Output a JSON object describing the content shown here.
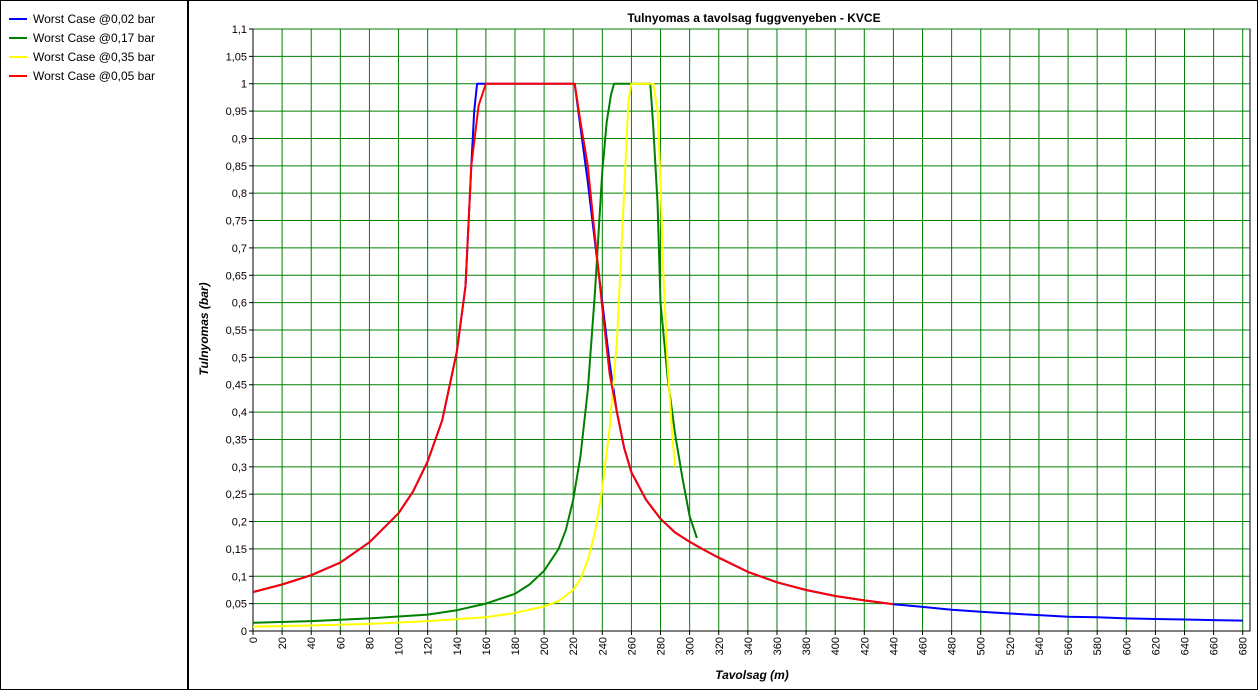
{
  "legend": {
    "items": [
      {
        "label": "Worst Case @0,02 bar",
        "color": "#0000ff"
      },
      {
        "label": "Worst Case @0,17 bar",
        "color": "#008000"
      },
      {
        "label": "Worst Case @0,35 bar",
        "color": "#ffff00"
      },
      {
        "label": "Worst Case @0,05 bar",
        "color": "#ff0000"
      }
    ]
  },
  "chart_data": {
    "type": "line",
    "title": "Tulnyomas a tavolsag fuggvenyeben - KVCE",
    "xlabel": "Tavolsag (m)",
    "ylabel": "Tulnyomas (bar)",
    "xlim": [
      0,
      685
    ],
    "ylim": [
      0,
      1.1
    ],
    "grid": true,
    "grid_color": "#008000",
    "legend_position": "left-panel",
    "x_ticks": [
      "0",
      "20",
      "40",
      "60",
      "80",
      "100",
      "120",
      "140",
      "160",
      "180",
      "200",
      "220",
      "240",
      "260",
      "280",
      "300",
      "320",
      "340",
      "360",
      "380",
      "400",
      "420",
      "440",
      "460",
      "480",
      "500",
      "520",
      "540",
      "560",
      "580",
      "600",
      "620",
      "640",
      "660",
      "680"
    ],
    "y_ticks": [
      "0",
      "0,05",
      "0,1",
      "0,15",
      "0,2",
      "0,25",
      "0,3",
      "0,35",
      "0,4",
      "0,45",
      "0,5",
      "0,55",
      "0,6",
      "0,65",
      "0,7",
      "0,75",
      "0,8",
      "0,85",
      "0,9",
      "0,95",
      "1",
      "1,05",
      "1,1"
    ],
    "series": [
      {
        "name": "Worst Case @0,02 bar",
        "color": "#0000ff",
        "x": [
          0,
          20,
          40,
          60,
          80,
          100,
          110,
          120,
          130,
          140,
          146,
          150,
          152,
          154,
          155,
          160,
          170,
          180,
          200,
          221,
          225,
          230,
          235,
          240,
          245,
          250,
          255,
          260,
          265,
          270,
          280,
          290,
          300,
          310,
          320,
          340,
          360,
          380,
          400,
          420,
          440,
          460,
          480,
          500,
          520,
          540,
          560,
          580,
          600,
          620,
          640,
          660,
          680
        ],
        "y": [
          0.071,
          0.085,
          0.102,
          0.125,
          0.162,
          0.215,
          0.255,
          0.31,
          0.385,
          0.51,
          0.63,
          0.85,
          0.95,
          1.0,
          1.0,
          1.0,
          1.0,
          1.0,
          1.0,
          1.0,
          0.92,
          0.82,
          0.71,
          0.6,
          0.49,
          0.4,
          0.335,
          0.29,
          0.265,
          0.24,
          0.205,
          0.18,
          0.163,
          0.148,
          0.134,
          0.108,
          0.089,
          0.075,
          0.064,
          0.056,
          0.049,
          0.044,
          0.039,
          0.035,
          0.032,
          0.029,
          0.026,
          0.025,
          0.023,
          0.022,
          0.021,
          0.02,
          0.019
        ]
      },
      {
        "name": "Worst Case @0,17 bar",
        "color": "#008000",
        "x": [
          0,
          40,
          80,
          120,
          140,
          160,
          180,
          190,
          200,
          210,
          215,
          220,
          225,
          230,
          235,
          240,
          243,
          246,
          248,
          250,
          255,
          260,
          265,
          270,
          273,
          275,
          278,
          280,
          285,
          290,
          295,
          300,
          305
        ],
        "y": [
          0.015,
          0.018,
          0.023,
          0.03,
          0.038,
          0.05,
          0.068,
          0.085,
          0.11,
          0.15,
          0.185,
          0.24,
          0.32,
          0.44,
          0.62,
          0.84,
          0.93,
          0.98,
          1.0,
          1.0,
          1.0,
          1.0,
          1.0,
          1.0,
          1.0,
          0.92,
          0.78,
          0.6,
          0.46,
          0.36,
          0.28,
          0.21,
          0.17
        ]
      },
      {
        "name": "Worst Case @0,35 bar",
        "color": "#ffff00",
        "x": [
          0,
          40,
          80,
          120,
          160,
          180,
          200,
          210,
          220,
          225,
          230,
          235,
          240,
          245,
          250,
          255,
          258,
          260,
          262,
          270,
          275,
          278,
          280,
          282,
          285,
          288,
          290
        ],
        "y": [
          0.008,
          0.01,
          0.013,
          0.018,
          0.025,
          0.033,
          0.045,
          0.055,
          0.075,
          0.095,
          0.13,
          0.18,
          0.26,
          0.37,
          0.53,
          0.8,
          0.97,
          1.0,
          1.0,
          1.0,
          1.0,
          0.95,
          0.82,
          0.65,
          0.48,
          0.36,
          0.3
        ]
      },
      {
        "name": "Worst Case @0,05 bar",
        "color": "#ff0000",
        "x": [
          0,
          20,
          40,
          60,
          80,
          100,
          110,
          120,
          130,
          140,
          146,
          150,
          155,
          160,
          170,
          180,
          200,
          221,
          225,
          230,
          235,
          240,
          245,
          250,
          255,
          260,
          265,
          270,
          280,
          290,
          300,
          310,
          320,
          340,
          360,
          380,
          400,
          420,
          440
        ],
        "y": [
          0.071,
          0.085,
          0.102,
          0.125,
          0.162,
          0.215,
          0.255,
          0.31,
          0.385,
          0.51,
          0.63,
          0.85,
          0.96,
          1.0,
          1.0,
          1.0,
          1.0,
          1.0,
          0.93,
          0.85,
          0.72,
          0.59,
          0.47,
          0.4,
          0.335,
          0.29,
          0.265,
          0.24,
          0.205,
          0.18,
          0.163,
          0.148,
          0.134,
          0.108,
          0.089,
          0.075,
          0.064,
          0.056,
          0.049
        ]
      }
    ]
  }
}
